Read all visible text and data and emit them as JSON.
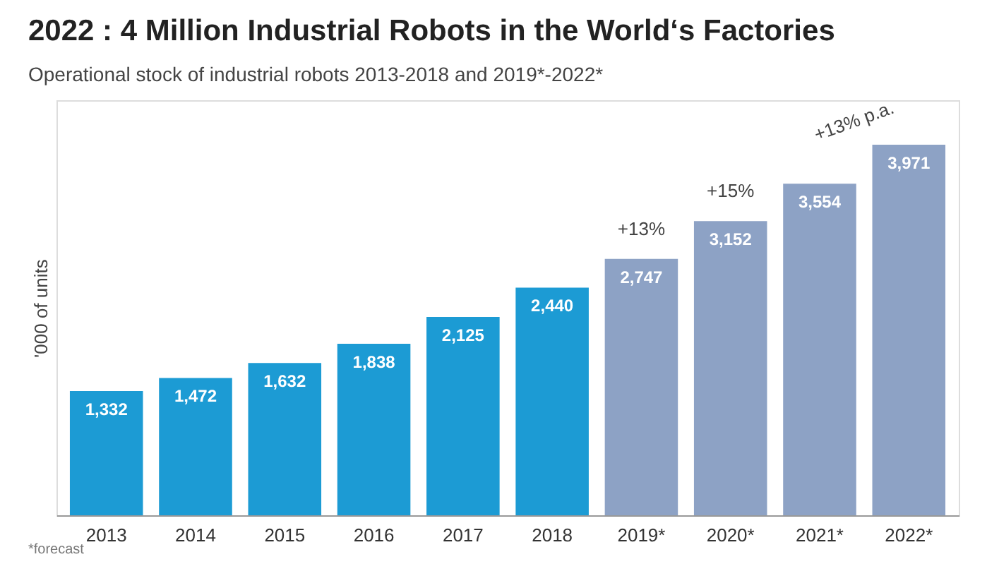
{
  "chart_data": {
    "type": "bar",
    "title": "2022 : 4 Million Industrial Robots in the World‘s Factories",
    "subtitle": "Operational stock of industrial robots 2013-2018 and 2019*-2022*",
    "ylabel": "'000 of units",
    "categories": [
      "2013",
      "2014",
      "2015",
      "2016",
      "2017",
      "2018",
      "2019*",
      "2020*",
      "2021*",
      "2022*"
    ],
    "values": [
      1332,
      1472,
      1632,
      1838,
      2125,
      2440,
      2747,
      3152,
      3554,
      3971
    ],
    "colors": [
      "#1c9bd4",
      "#1c9bd4",
      "#1c9bd4",
      "#1c9bd4",
      "#1c9bd4",
      "#1c9bd4",
      "#8da2c5",
      "#8da2c5",
      "#8da2c5",
      "#8da2c5"
    ],
    "value_labels": [
      "1,332",
      "1,472",
      "1,632",
      "1,838",
      "2,125",
      "2,440",
      "2,747",
      "3,152",
      "3,554",
      "3,971"
    ],
    "grid": false,
    "legend": false,
    "annotations": [
      "+13%",
      "+15%",
      "+13% p.a.",
      "*forecast"
    ]
  }
}
